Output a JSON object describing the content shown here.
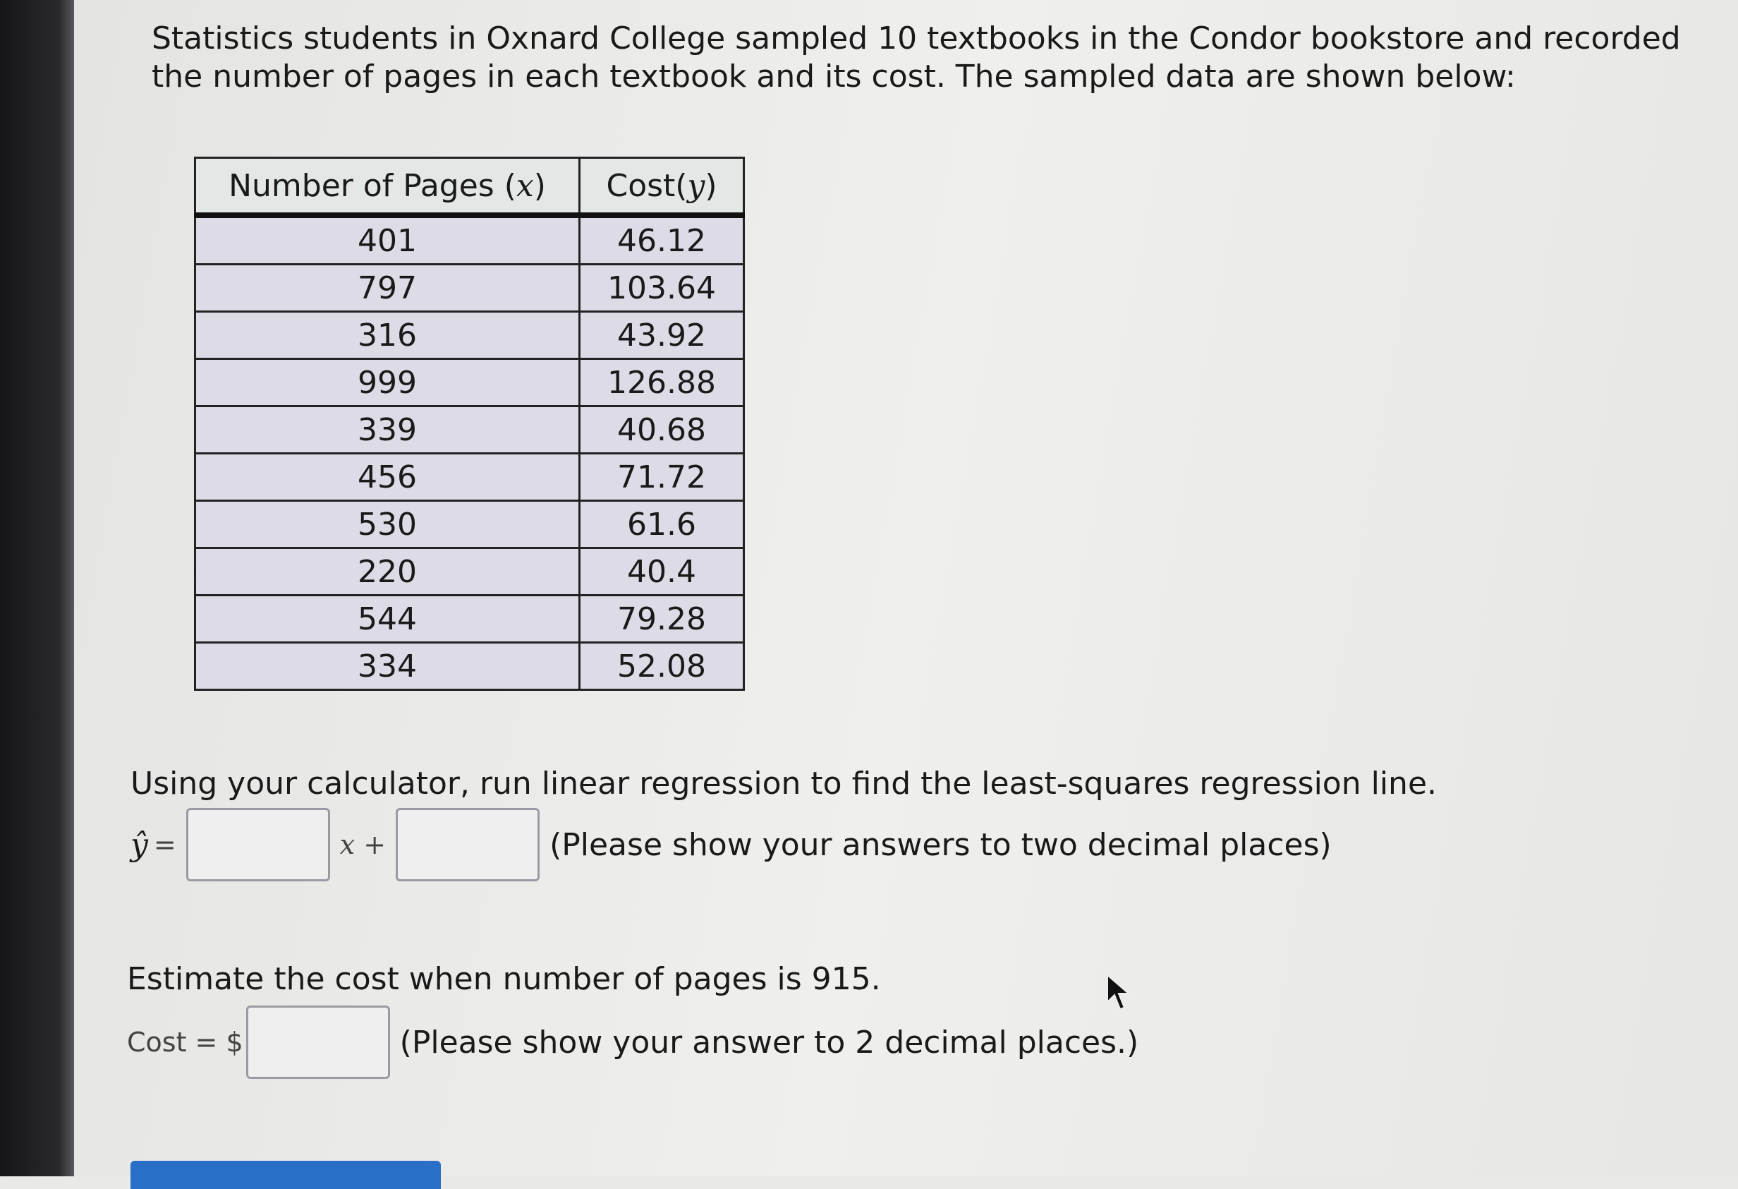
{
  "intro": "Statistics students in Oxnard College sampled 10 textbooks in the Condor bookstore and recorded the number of pages in each textbook and its cost. The sampled data are shown below:",
  "table": {
    "headers": [
      "Number of Pages (",
      "x",
      ")",
      "Cost(",
      "y",
      ")"
    ],
    "rows": [
      [
        "401",
        "46.12"
      ],
      [
        "797",
        "103.64"
      ],
      [
        "316",
        "43.92"
      ],
      [
        "999",
        "126.88"
      ],
      [
        "339",
        "40.68"
      ],
      [
        "456",
        "71.72"
      ],
      [
        "530",
        "61.6"
      ],
      [
        "220",
        "40.4"
      ],
      [
        "544",
        "79.28"
      ],
      [
        "334",
        "52.08"
      ]
    ]
  },
  "regression": {
    "prompt": "Using your calculator, run linear regression to find the least-squares regression line.",
    "yhat": "ŷ",
    "equals": "=",
    "x_plus": "x +",
    "slope_value": "",
    "intercept_value": "",
    "hint": "(Please show your answers to two decimal places)"
  },
  "estimate": {
    "prompt": "Estimate the cost when number of pages is 915.",
    "label": "Cost = $",
    "value": "",
    "hint": "(Please show your answer to 2 decimal places.)"
  },
  "colors": {
    "button": "#2a6fc7",
    "table_body": "#dcdbe6",
    "table_header": "#e3e8e6"
  }
}
